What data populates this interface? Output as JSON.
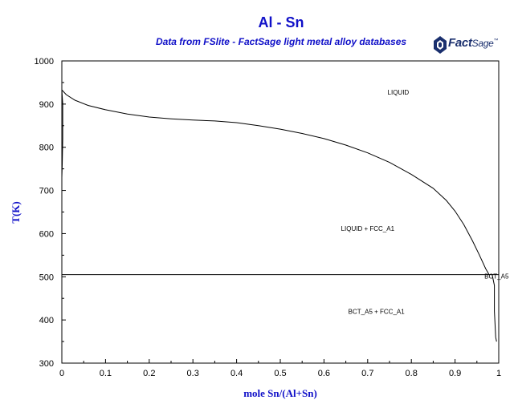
{
  "header": {
    "title": "Al - Sn",
    "subtitle": "Data from FSlite - FactSage light metal alloy databases",
    "logo_text_main": "Fact",
    "logo_text_sage": "Sage",
    "logo_tm": "™"
  },
  "chart_data": {
    "type": "line",
    "xlabel": "mole Sn/(Al+Sn)",
    "ylabel": "T(K)",
    "xlim": [
      0,
      1
    ],
    "ylim": [
      300,
      1000
    ],
    "x_ticks": [
      0,
      0.1,
      0.2,
      0.3,
      0.4,
      0.5,
      0.6,
      0.7,
      0.8,
      0.9,
      1
    ],
    "x_tick_labels": [
      "0",
      "0.1",
      "0.2",
      "0.3",
      "0.4",
      "0.5",
      "0.6",
      "0.7",
      "0.8",
      "0.9",
      "1"
    ],
    "y_ticks": [
      300,
      400,
      500,
      600,
      700,
      800,
      900,
      1000
    ],
    "y_tick_labels": [
      "300",
      "400",
      "500",
      "600",
      "700",
      "800",
      "900",
      "1000"
    ],
    "grid": false,
    "series": [
      {
        "points": [
          [
            0,
            933
          ],
          [
            0.01,
            922
          ],
          [
            0.03,
            909
          ],
          [
            0.06,
            897
          ],
          [
            0.1,
            887
          ],
          [
            0.15,
            877
          ],
          [
            0.2,
            870
          ],
          [
            0.25,
            866
          ],
          [
            0.3,
            863
          ],
          [
            0.35,
            861
          ],
          [
            0.4,
            857
          ],
          [
            0.45,
            850
          ],
          [
            0.5,
            842
          ],
          [
            0.55,
            832
          ],
          [
            0.6,
            820
          ],
          [
            0.65,
            805
          ],
          [
            0.7,
            787
          ],
          [
            0.75,
            765
          ],
          [
            0.8,
            737
          ],
          [
            0.85,
            705
          ],
          [
            0.88,
            677
          ],
          [
            0.9,
            652
          ],
          [
            0.92,
            621
          ],
          [
            0.94,
            583
          ],
          [
            0.955,
            552
          ],
          [
            0.97,
            519
          ],
          [
            0.978,
            505
          ]
        ]
      },
      {
        "points": [
          [
            0,
            505
          ],
          [
            1,
            505
          ]
        ]
      },
      {
        "points": [
          [
            0,
            933
          ],
          [
            0.002,
            900
          ],
          [
            0.002,
            820
          ],
          [
            0.001,
            760
          ],
          [
            0,
            730
          ]
        ]
      },
      {
        "points": [
          [
            0.985,
            505
          ],
          [
            0.99,
            480
          ],
          [
            0.99,
            420
          ],
          [
            0.993,
            360
          ],
          [
            0.995,
            350
          ]
        ]
      }
    ],
    "annotations": [
      {
        "text": "LIQUID",
        "x": 0.77,
        "y": 922
      },
      {
        "text": "LIQUID + FCC_A1",
        "x": 0.7,
        "y": 606
      },
      {
        "text": "BCT_A5 + FCC_A1",
        "x": 0.72,
        "y": 414
      },
      {
        "text": "BCT_A5",
        "x": 0.995,
        "y": 496
      }
    ]
  }
}
